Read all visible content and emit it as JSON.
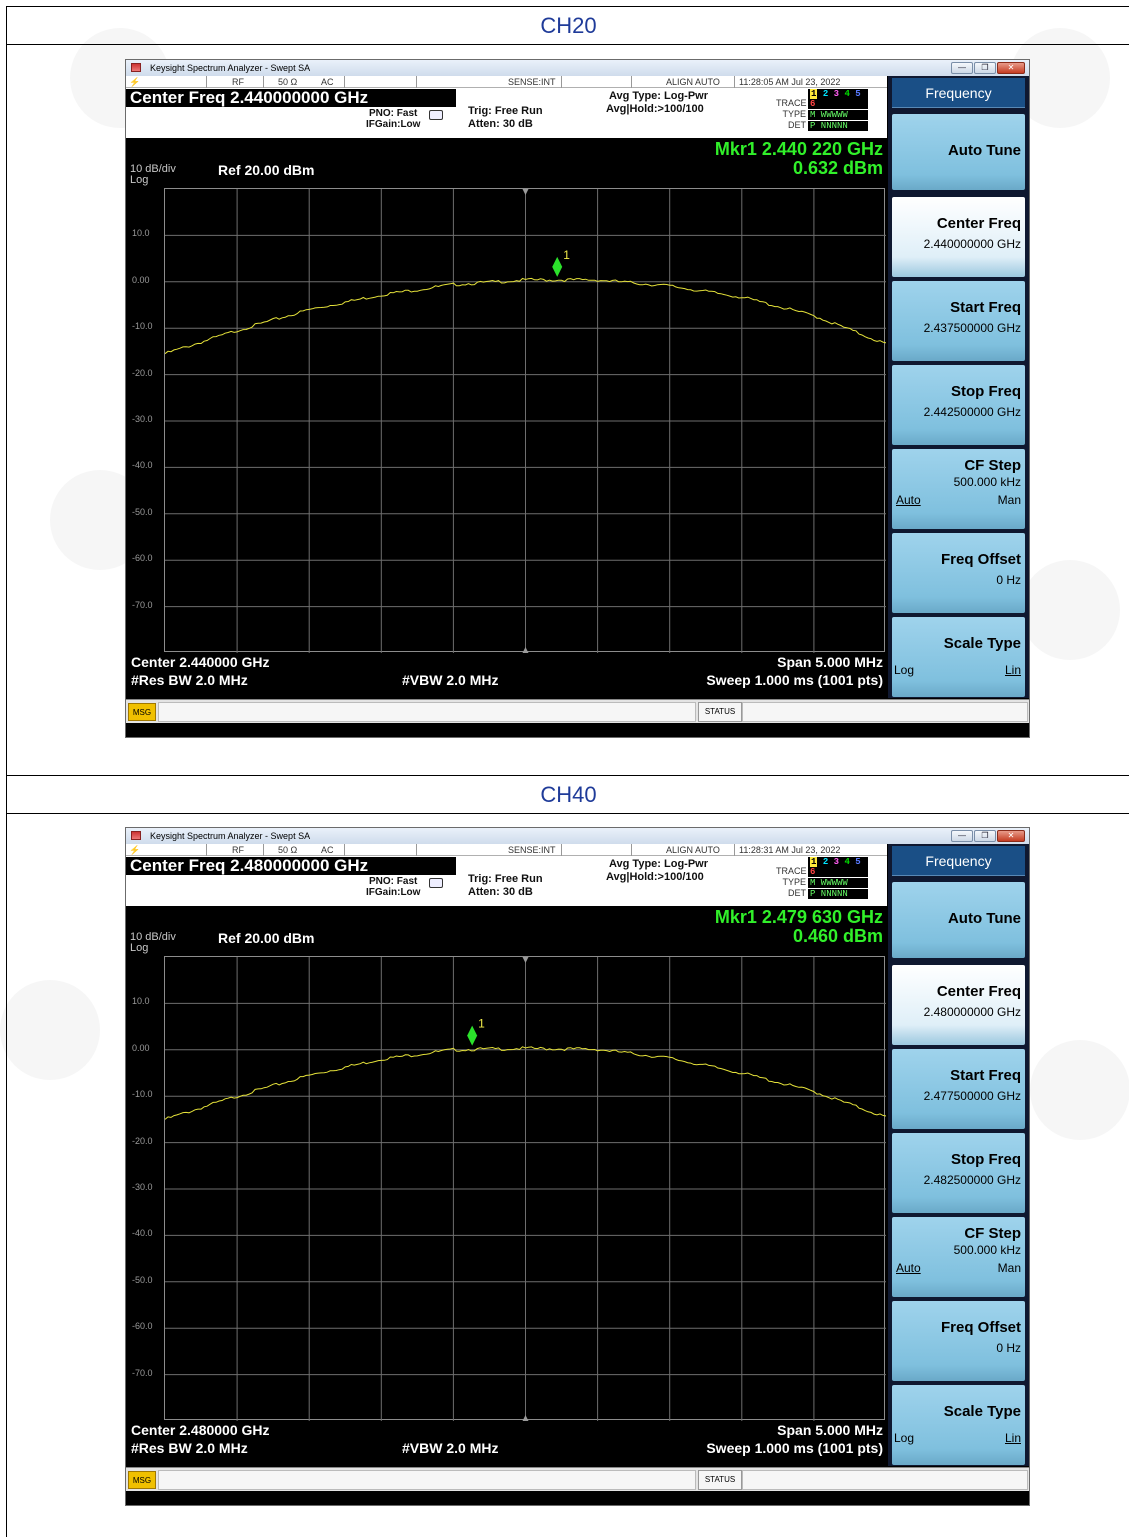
{
  "screens": [
    {
      "label": "CH20",
      "app_title": "Keysight Spectrum Analyzer - Swept SA",
      "status": {
        "rf": "RF",
        "impedance": "50 Ω",
        "coupling": "AC",
        "sense": "SENSE:INT",
        "align": "ALIGN AUTO",
        "datetime": "11:28:05 AM Jul 23, 2022"
      },
      "center_freq_title": "Center Freq 2.440000000 GHz",
      "pno": "PNO: Fast",
      "ifgain": "IFGain:Low",
      "trig": "Trig: Free Run",
      "atten": "Atten: 30 dB",
      "avg_type": "Avg Type: Log-Pwr",
      "avg_hold": "Avg|Hold:>100/100",
      "trace": {
        "trace_label": "TRACE",
        "type_label": "TYPE",
        "det_label": "DET",
        "numbers": [
          "1",
          "2",
          "3",
          "4",
          "5",
          "6"
        ],
        "type_value": "M WWWWW",
        "det_value": "P NNNNN"
      },
      "marker_freq": "Mkr1 2.440 220 GHz",
      "marker_level": "0.632 dBm",
      "scale_label": "10 dB/div",
      "scale_log": "Log",
      "ref_level": "Ref 20.00 dBm",
      "y_labels": [
        "10.0",
        "0.00",
        "-10.0",
        "-20.0",
        "-30.0",
        "-40.0",
        "-50.0",
        "-60.0",
        "-70.0"
      ],
      "marker_label": "1",
      "center_text": "Center 2.440000 GHz",
      "span_text": "Span 5.000 MHz",
      "res_bw": "#Res BW 2.0 MHz",
      "vbw": "#VBW 2.0 MHz",
      "sweep": "Sweep  1.000 ms (1001 pts)",
      "msg": "MSG",
      "status_label": "STATUS",
      "softkeys": {
        "title": "Frequency",
        "auto_tune": "Auto Tune",
        "center_freq": "Center Freq",
        "center_freq_val": "2.440000000 GHz",
        "start_freq": "Start Freq",
        "start_freq_val": "2.437500000 GHz",
        "stop_freq": "Stop Freq",
        "stop_freq_val": "2.442500000 GHz",
        "cf_step": "CF Step",
        "cf_step_val": "500.000 kHz",
        "auto": "Auto",
        "man": "Man",
        "freq_offset": "Freq Offset",
        "freq_offset_val": "0 Hz",
        "scale_type": "Scale Type",
        "log": "Log",
        "lin": "Lin"
      },
      "chart_data": {
        "type": "line",
        "x_unit": "GHz",
        "xlim": [
          2.4375,
          2.4425
        ],
        "ylim": [
          -80,
          20
        ],
        "grid": true,
        "series": [
          {
            "x": [
              2.4375,
              2.438,
              2.4385,
              2.439,
              2.4395,
              2.44,
              2.4405,
              2.441,
              2.4415,
              2.442,
              2.4425
            ],
            "values": [
              -15.5,
              -10.5,
              -6.0,
              -2.8,
              -0.6,
              0.4,
              0.4,
              -0.9,
              -3.3,
              -7.3,
              -13.4
            ]
          }
        ],
        "marker": {
          "x": 2.44022,
          "y": 0.632
        }
      }
    },
    {
      "label": "CH40",
      "app_title": "Keysight Spectrum Analyzer - Swept SA",
      "status": {
        "rf": "RF",
        "impedance": "50 Ω",
        "coupling": "AC",
        "sense": "SENSE:INT",
        "align": "ALIGN AUTO",
        "datetime": "11:28:31 AM Jul 23, 2022"
      },
      "center_freq_title": "Center Freq 2.480000000 GHz",
      "pno": "PNO: Fast",
      "ifgain": "IFGain:Low",
      "trig": "Trig: Free Run",
      "atten": "Atten: 30 dB",
      "avg_type": "Avg Type: Log-Pwr",
      "avg_hold": "Avg|Hold:>100/100",
      "trace": {
        "trace_label": "TRACE",
        "type_label": "TYPE",
        "det_label": "DET",
        "numbers": [
          "1",
          "2",
          "3",
          "4",
          "5",
          "6"
        ],
        "type_value": "M WWWWW",
        "det_value": "P NNNNN"
      },
      "marker_freq": "Mkr1 2.479 630 GHz",
      "marker_level": "0.460 dBm",
      "scale_label": "10 dB/div",
      "scale_log": "Log",
      "ref_level": "Ref 20.00 dBm",
      "y_labels": [
        "10.0",
        "0.00",
        "-10.0",
        "-20.0",
        "-30.0",
        "-40.0",
        "-50.0",
        "-60.0",
        "-70.0"
      ],
      "marker_label": "1",
      "center_text": "Center 2.480000 GHz",
      "span_text": "Span 5.000 MHz",
      "res_bw": "#Res BW 2.0 MHz",
      "vbw": "#VBW 2.0 MHz",
      "sweep": "Sweep  1.000 ms (1001 pts)",
      "msg": "MSG",
      "status_label": "STATUS",
      "softkeys": {
        "title": "Frequency",
        "auto_tune": "Auto Tune",
        "center_freq": "Center Freq",
        "center_freq_val": "2.480000000 GHz",
        "start_freq": "Start Freq",
        "start_freq_val": "2.477500000 GHz",
        "stop_freq": "Stop Freq",
        "stop_freq_val": "2.482500000 GHz",
        "cf_step": "CF Step",
        "cf_step_val": "500.000 kHz",
        "auto": "Auto",
        "man": "Man",
        "freq_offset": "Freq Offset",
        "freq_offset_val": "0 Hz",
        "scale_type": "Scale Type",
        "log": "Log",
        "lin": "Lin"
      },
      "chart_data": {
        "type": "line",
        "x_unit": "GHz",
        "xlim": [
          2.4775,
          2.4825
        ],
        "ylim": [
          -80,
          20
        ],
        "grid": true,
        "series": [
          {
            "x": [
              2.4775,
              2.478,
              2.4785,
              2.479,
              2.4795,
              2.48,
              2.4805,
              2.481,
              2.4815,
              2.482,
              2.4825
            ],
            "values": [
              -15.0,
              -10.0,
              -5.5,
              -2.0,
              0.0,
              0.3,
              0.1,
              -1.8,
              -5.0,
              -9.0,
              -14.5
            ]
          }
        ],
        "marker": {
          "x": 2.47963,
          "y": 0.46
        }
      }
    }
  ]
}
